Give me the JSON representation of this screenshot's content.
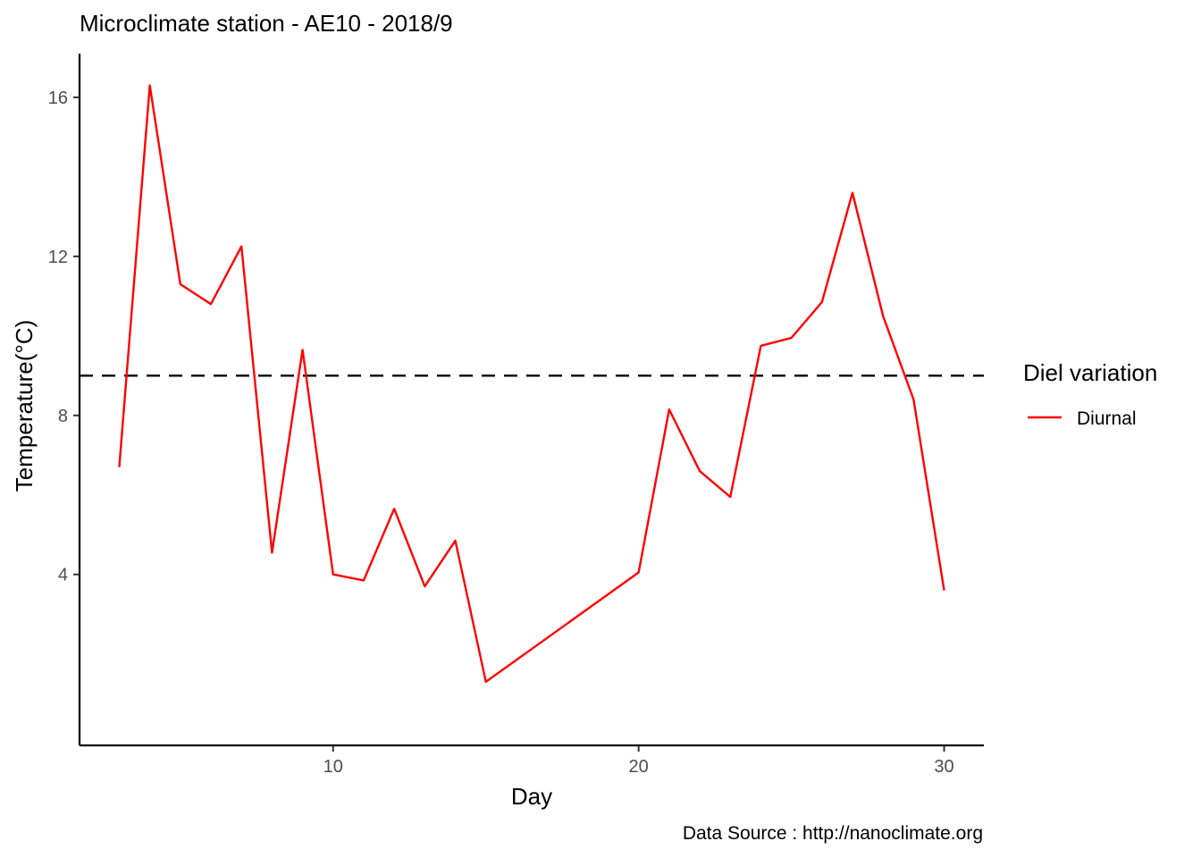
{
  "chart_data": {
    "type": "line",
    "title": "Microclimate station -  AE10 - 2018/9",
    "xlabel": "Day",
    "ylabel": "Temperature(°C)",
    "caption": "Data Source : http://nanoclimate.org",
    "legend": {
      "title": "Diel variation",
      "position": "right"
    },
    "xlim": [
      1.7,
      31.3
    ],
    "ylim": [
      -0.3,
      17.1
    ],
    "x_ticks": [
      10,
      20,
      30
    ],
    "y_ticks": [
      4,
      8,
      12,
      16
    ],
    "grid": false,
    "reference_line": {
      "y": 9.0,
      "style": "dashed",
      "color": "#000000"
    },
    "series": [
      {
        "name": "Diurnal",
        "color": "#ff0000",
        "x": [
          3,
          4,
          5,
          6,
          7,
          8,
          9,
          10,
          11,
          12,
          13,
          14,
          15,
          20,
          21,
          22,
          23,
          24,
          25,
          26,
          27,
          28,
          29,
          30
        ],
        "y": [
          6.7,
          16.3,
          11.3,
          10.8,
          12.25,
          4.55,
          9.65,
          4.0,
          3.85,
          5.65,
          3.7,
          4.85,
          1.3,
          4.05,
          8.15,
          6.6,
          5.95,
          9.75,
          9.95,
          10.85,
          13.6,
          10.5,
          8.4,
          3.6
        ]
      }
    ]
  }
}
